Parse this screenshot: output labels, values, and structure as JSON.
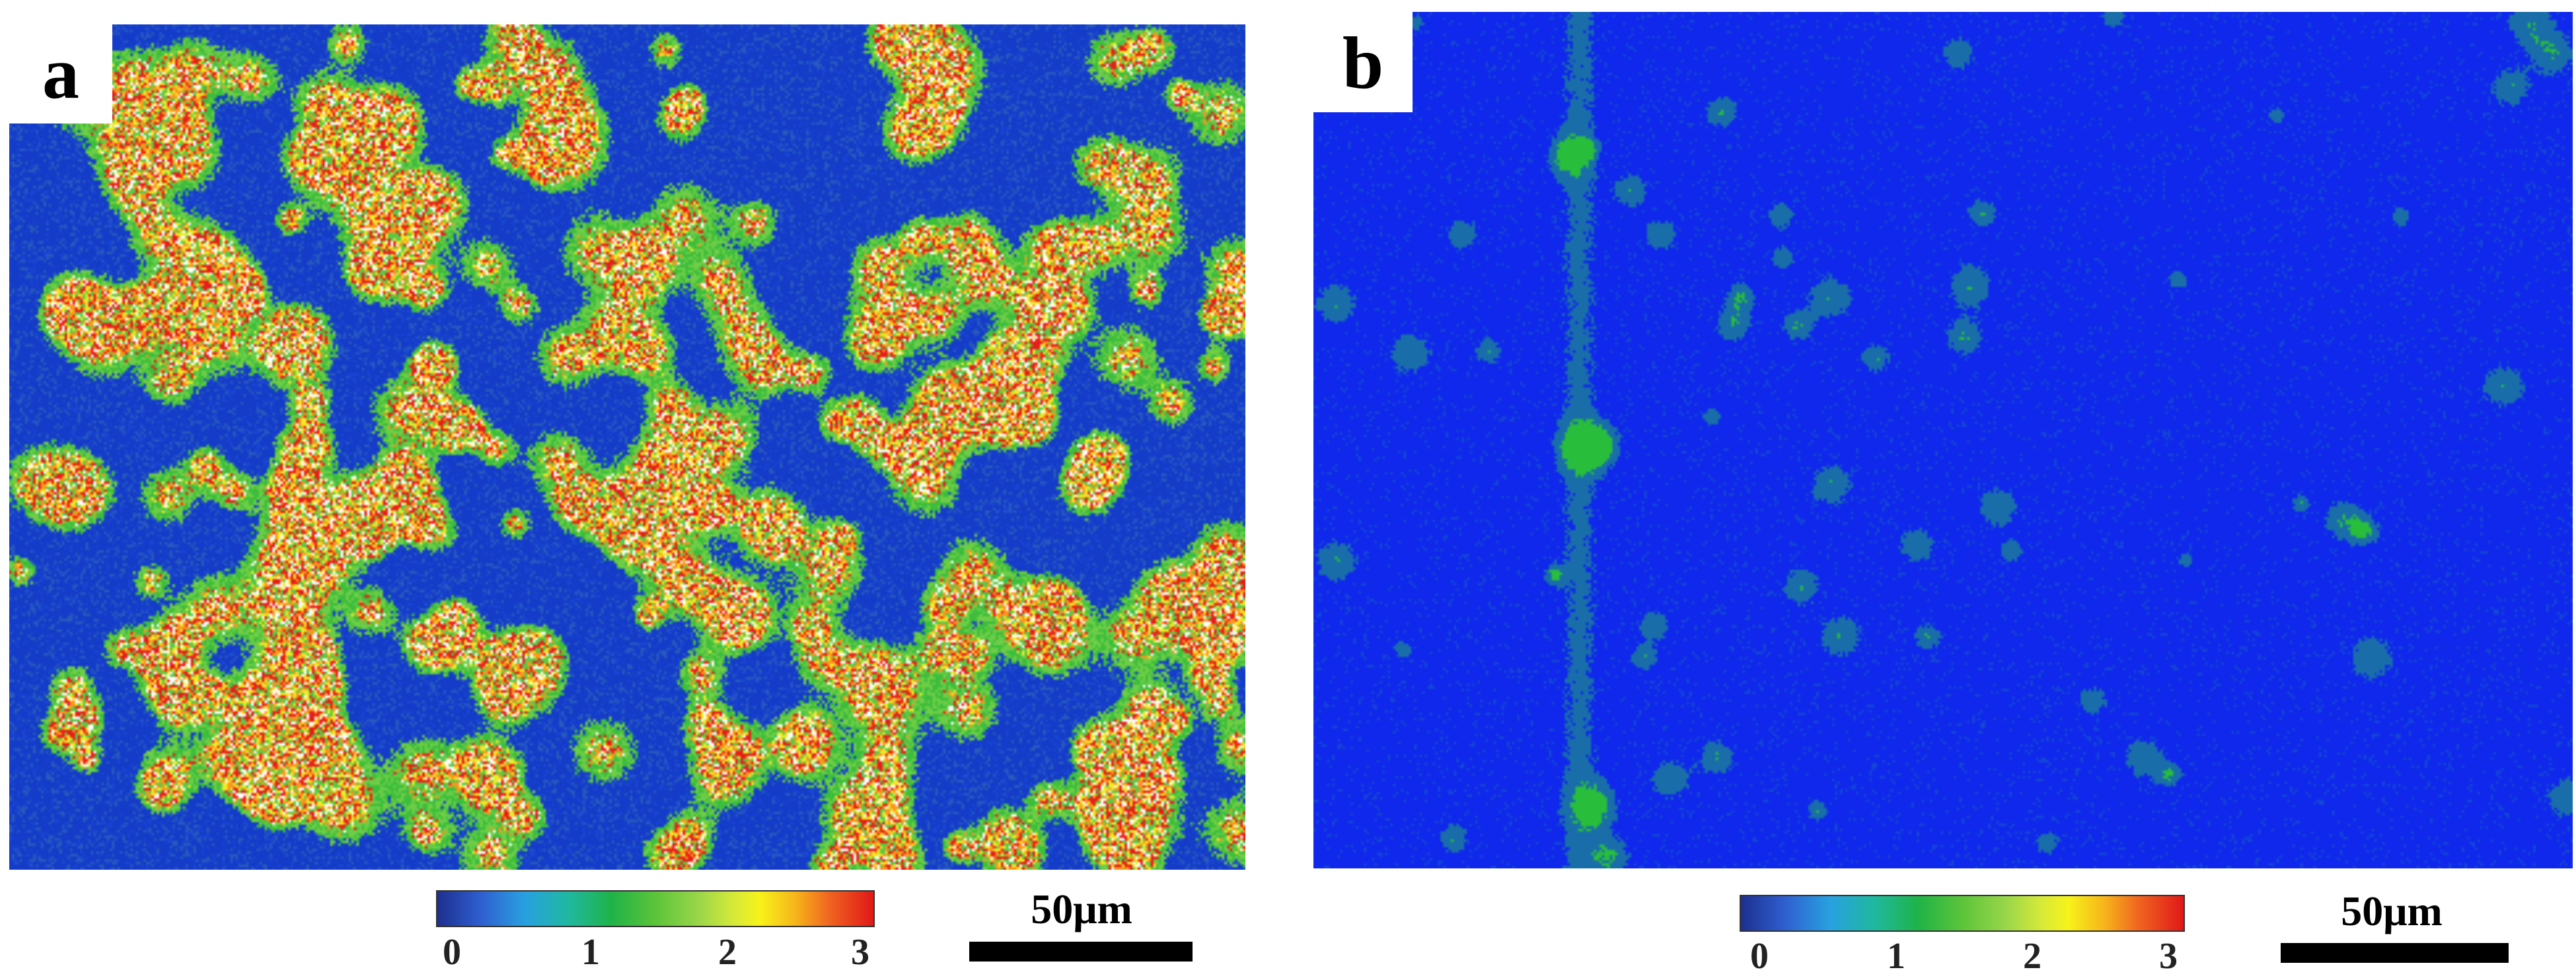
{
  "panels": [
    {
      "label": "a",
      "colormap": [
        "#1d2f8f",
        "#28a0e0",
        "#1fb348",
        "#9ad64a",
        "#f7f21a",
        "#ef6420",
        "#e01818"
      ],
      "colorbar_ticks": [
        "0",
        "1",
        "2",
        "3"
      ],
      "scalebar_label": "50μm"
    },
    {
      "label": "b",
      "colormap": [
        "#1d2f8f",
        "#28a0e0",
        "#1fb348",
        "#9ad64a",
        "#f7f21a",
        "#ef6420",
        "#e01818"
      ],
      "colorbar_ticks": [
        "0",
        "1",
        "2",
        "3"
      ],
      "scalebar_label": "50μm"
    }
  ]
}
